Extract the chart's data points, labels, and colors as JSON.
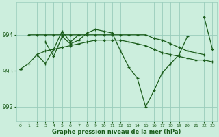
{
  "background_color": "#cceedd",
  "grid_color": "#99ccbb",
  "line_color": "#1a5c1a",
  "xlabel": "Graphe pression niveau de la mer (hPa)",
  "xlim": [
    -0.5,
    23.5
  ],
  "ylim": [
    991.6,
    994.9
  ],
  "yticks": [
    992,
    993,
    994
  ],
  "xtick_labels": [
    "0",
    "1",
    "2",
    "3",
    "4",
    "5",
    "6",
    "7",
    "8",
    "9",
    "10",
    "11",
    "12",
    "13",
    "14",
    "15",
    "16",
    "17",
    "18",
    "19",
    "20",
    "21",
    "22",
    "23"
  ],
  "xticks": [
    0,
    1,
    2,
    3,
    4,
    5,
    6,
    7,
    8,
    9,
    10,
    11,
    12,
    13,
    14,
    15,
    16,
    17,
    18,
    19,
    20,
    21,
    22,
    23
  ],
  "s_main": [
    993.05,
    null,
    null,
    993.8,
    993.4,
    993.95,
    993.75,
    993.85,
    994.05,
    994.15,
    994.1,
    994.05,
    993.55,
    993.1,
    992.8,
    992.0,
    992.45,
    992.95,
    993.2,
    993.45,
    993.95,
    null,
    994.5,
    993.6
  ],
  "s_upper": [
    null,
    994.0,
    994.0,
    994.0,
    994.0,
    994.0,
    994.0,
    994.0,
    994.0,
    994.0,
    994.0,
    994.0,
    994.0,
    994.0,
    994.0,
    994.0,
    993.9,
    993.85,
    993.75,
    993.65,
    993.55,
    993.5,
    993.45,
    null
  ],
  "s_mid": [
    993.05,
    993.2,
    993.45,
    993.55,
    993.6,
    993.65,
    993.7,
    993.75,
    993.8,
    993.85,
    993.85,
    993.85,
    993.85,
    993.8,
    993.75,
    993.7,
    993.6,
    993.5,
    993.45,
    993.4,
    993.35,
    993.3,
    993.3,
    993.25
  ],
  "s_short": [
    993.05,
    null,
    993.45,
    993.2,
    993.6,
    994.1,
    993.8,
    994.0,
    null,
    null,
    null,
    null,
    null,
    null,
    null,
    null,
    null,
    null,
    null,
    null,
    null,
    null,
    null,
    null
  ]
}
